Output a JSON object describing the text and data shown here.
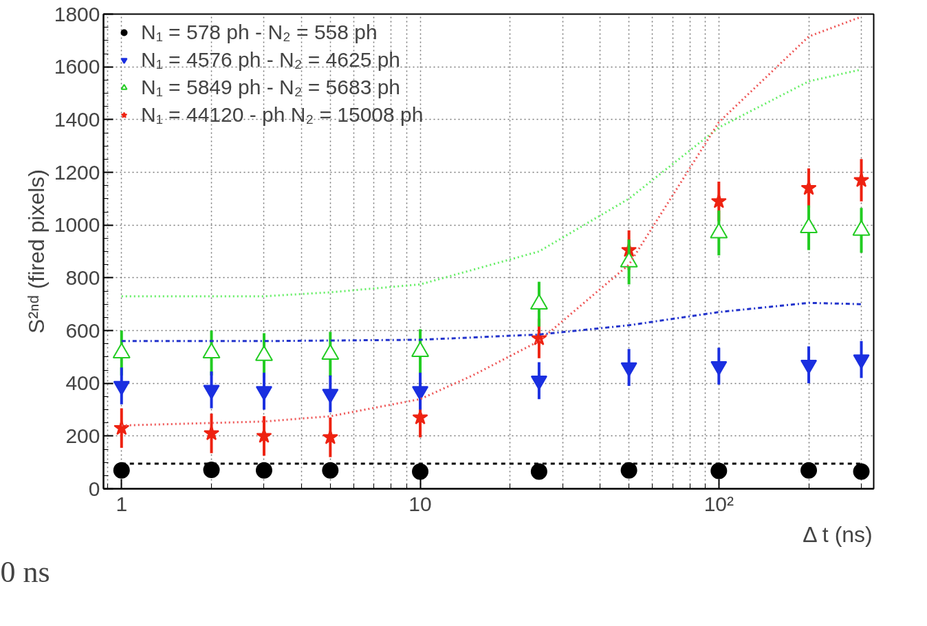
{
  "chart_data": {
    "type": "scatter",
    "xlabel": "Δ t (ns)",
    "ylabel": "S²ⁿᵈ (fired pixels)",
    "log": "x",
    "xlim": [
      0.87,
      330
    ],
    "ylim": [
      0,
      1800
    ],
    "xticks": [
      1,
      10,
      {
        "value": 100,
        "label": "10²"
      }
    ],
    "yticks": [
      0,
      200,
      400,
      600,
      800,
      1000,
      1200,
      1400,
      1600,
      1800
    ],
    "grid": true,
    "legend": "top left",
    "annotations": [
      "0 ns"
    ],
    "x": [
      1,
      2,
      3,
      5,
      10,
      25,
      50,
      100,
      200,
      300
    ],
    "series": [
      {
        "name": "N₁ = 578 ph - N₂ = 558 ph",
        "color": "#000000",
        "marker": "circle",
        "values": [
          70,
          72,
          70,
          70,
          65,
          65,
          70,
          68,
          70,
          65
        ],
        "errors": [
          12,
          12,
          12,
          12,
          12,
          12,
          12,
          12,
          12,
          12
        ]
      },
      {
        "name": "N₁ = 4576 ph - N₂ = 4625 ph",
        "color": "#1a2fe0",
        "values": [
          390,
          375,
          370,
          360,
          370,
          410,
          460,
          465,
          470,
          490
        ],
        "errors": [
          70,
          70,
          70,
          70,
          70,
          70,
          70,
          70,
          70,
          70
        ]
      },
      {
        "name": "N₁ = 5849 ph - N₂ = 5683 ph",
        "color": "#22cc22",
        "marker": "triangle_open",
        "values": [
          515,
          515,
          505,
          510,
          520,
          700,
          860,
          970,
          990,
          980
        ],
        "errors": [
          85,
          85,
          85,
          85,
          85,
          85,
          85,
          85,
          85,
          85
        ]
      },
      {
        "name": "N₁ = 44120 - ph N₂ = 15008 ph",
        "color": "#ee2211",
        "marker": "star",
        "values": [
          230,
          210,
          200,
          195,
          270,
          570,
          905,
          1090,
          1140,
          1170
        ],
        "errors": [
          75,
          75,
          75,
          75,
          75,
          75,
          75,
          75,
          75,
          80
        ]
      },
      {
        "type": "line",
        "color": "#000000",
        "line_style": "dashed",
        "x": [
          1,
          300
        ],
        "values": [
          95,
          95
        ]
      },
      {
        "type": "line",
        "color": "#2233cc",
        "line_style": "dashdot",
        "x": [
          1,
          3,
          10,
          25,
          50,
          100,
          200,
          300
        ],
        "values": [
          560,
          560,
          565,
          585,
          620,
          670,
          705,
          700
        ]
      },
      {
        "type": "line",
        "color": "#66ee66",
        "line_style": "dotted",
        "x": [
          1,
          3,
          5,
          10,
          25,
          50,
          100,
          200,
          300
        ],
        "values": [
          730,
          730,
          745,
          775,
          900,
          1100,
          1370,
          1545,
          1590
        ]
      },
      {
        "type": "line",
        "color": "#ee5555",
        "line_style": "dotted",
        "x": [
          1,
          3,
          5,
          10,
          15,
          25,
          50,
          100,
          200,
          300
        ],
        "values": [
          240,
          255,
          275,
          340,
          430,
          560,
          850,
          1390,
          1715,
          1790
        ]
      }
    ]
  }
}
